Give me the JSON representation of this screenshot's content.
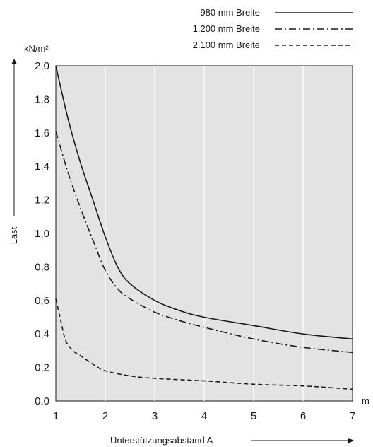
{
  "chart_data": {
    "type": "line",
    "title": "",
    "xlabel": "Unterstützungsabstand A",
    "ylabel": "Last",
    "y_unit": "kN/m²",
    "x_unit": "m",
    "xlim": [
      1,
      7
    ],
    "ylim": [
      0,
      2
    ],
    "x_ticks": [
      1,
      2,
      3,
      4,
      5,
      6,
      7
    ],
    "y_ticks": [
      0,
      0.2,
      0.4,
      0.6,
      0.8,
      1.0,
      1.2,
      1.4,
      1.6,
      1.8,
      2.0
    ],
    "x_tick_labels": [
      "1",
      "2",
      "3",
      "4",
      "5",
      "6",
      "7"
    ],
    "y_tick_labels": [
      "0,0",
      "0,2",
      "0,4",
      "0,6",
      "0,8",
      "1,0",
      "1,2",
      "1,4",
      "1,6",
      "1,8",
      "2,0"
    ],
    "grid": "vertical",
    "legend_position": "top-right",
    "background": "#e3e3e3",
    "series": [
      {
        "name": "980 mm Breite",
        "style": "solid",
        "x": [
          1,
          1.25,
          1.5,
          1.75,
          2,
          2.25,
          2.5,
          3,
          3.5,
          4,
          5,
          6,
          7
        ],
        "y": [
          2.0,
          1.68,
          1.42,
          1.2,
          0.98,
          0.8,
          0.7,
          0.6,
          0.54,
          0.5,
          0.45,
          0.4,
          0.37
        ]
      },
      {
        "name": "1.200 mm Breite",
        "style": "dashdot",
        "x": [
          1,
          1.25,
          1.5,
          1.75,
          2,
          2.25,
          2.5,
          3,
          3.5,
          4,
          5,
          6,
          7
        ],
        "y": [
          1.61,
          1.36,
          1.15,
          0.96,
          0.78,
          0.67,
          0.61,
          0.53,
          0.48,
          0.44,
          0.37,
          0.32,
          0.29
        ]
      },
      {
        "name": "2.100 mm Breite",
        "style": "dashed",
        "x": [
          1,
          1.1,
          1.2,
          1.35,
          1.5,
          1.75,
          2,
          2.5,
          3,
          4,
          5,
          6,
          7
        ],
        "y": [
          0.61,
          0.48,
          0.36,
          0.3,
          0.27,
          0.22,
          0.18,
          0.15,
          0.135,
          0.12,
          0.1,
          0.09,
          0.07
        ]
      }
    ]
  }
}
